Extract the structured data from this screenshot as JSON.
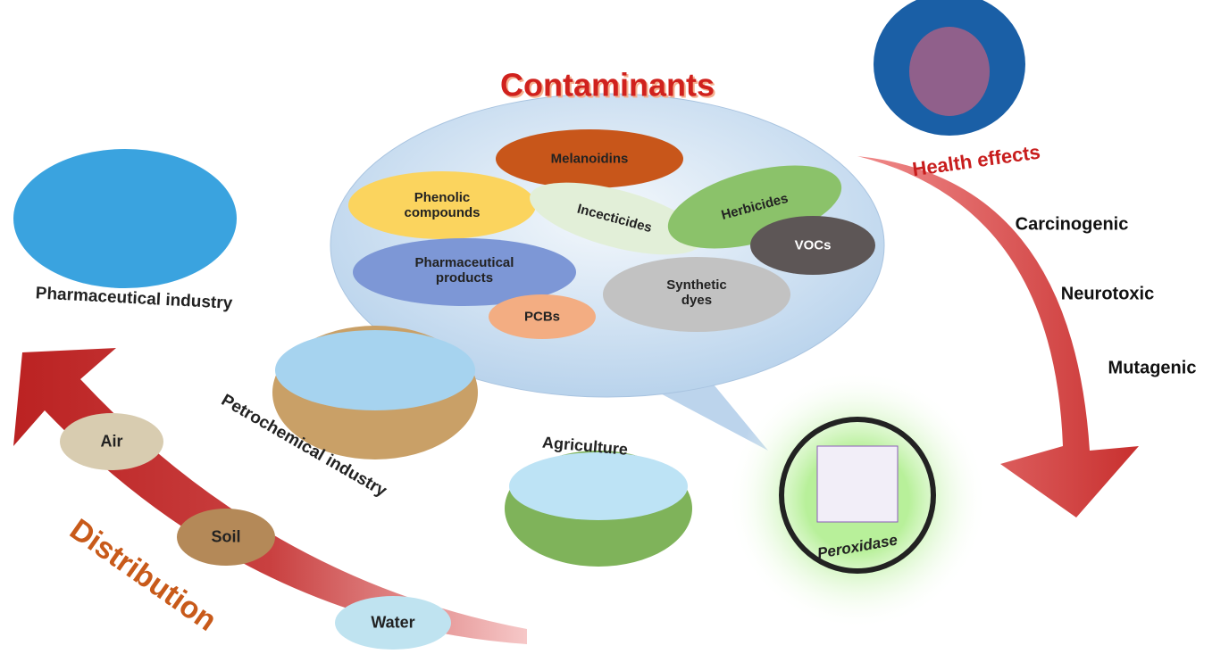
{
  "title": "Contaminants",
  "contaminants": [
    "Melanoidins",
    "Phenolic compounds",
    "Incecticides",
    "Herbicides",
    "VOCs",
    "Pharmaceutical products",
    "Synthetic dyes",
    "PCBs"
  ],
  "health_effects": {
    "title": "Health effects",
    "items": [
      "Carcinogenic",
      "Neurotoxic",
      "Mutagenic"
    ]
  },
  "sources": [
    "Pharmaceutical industry",
    "Petrochemical industry",
    "Agriculture"
  ],
  "enzyme": "Peroxidase",
  "distribution": {
    "title": "Distribution",
    "media": [
      "Air",
      "Soil",
      "Water"
    ]
  }
}
